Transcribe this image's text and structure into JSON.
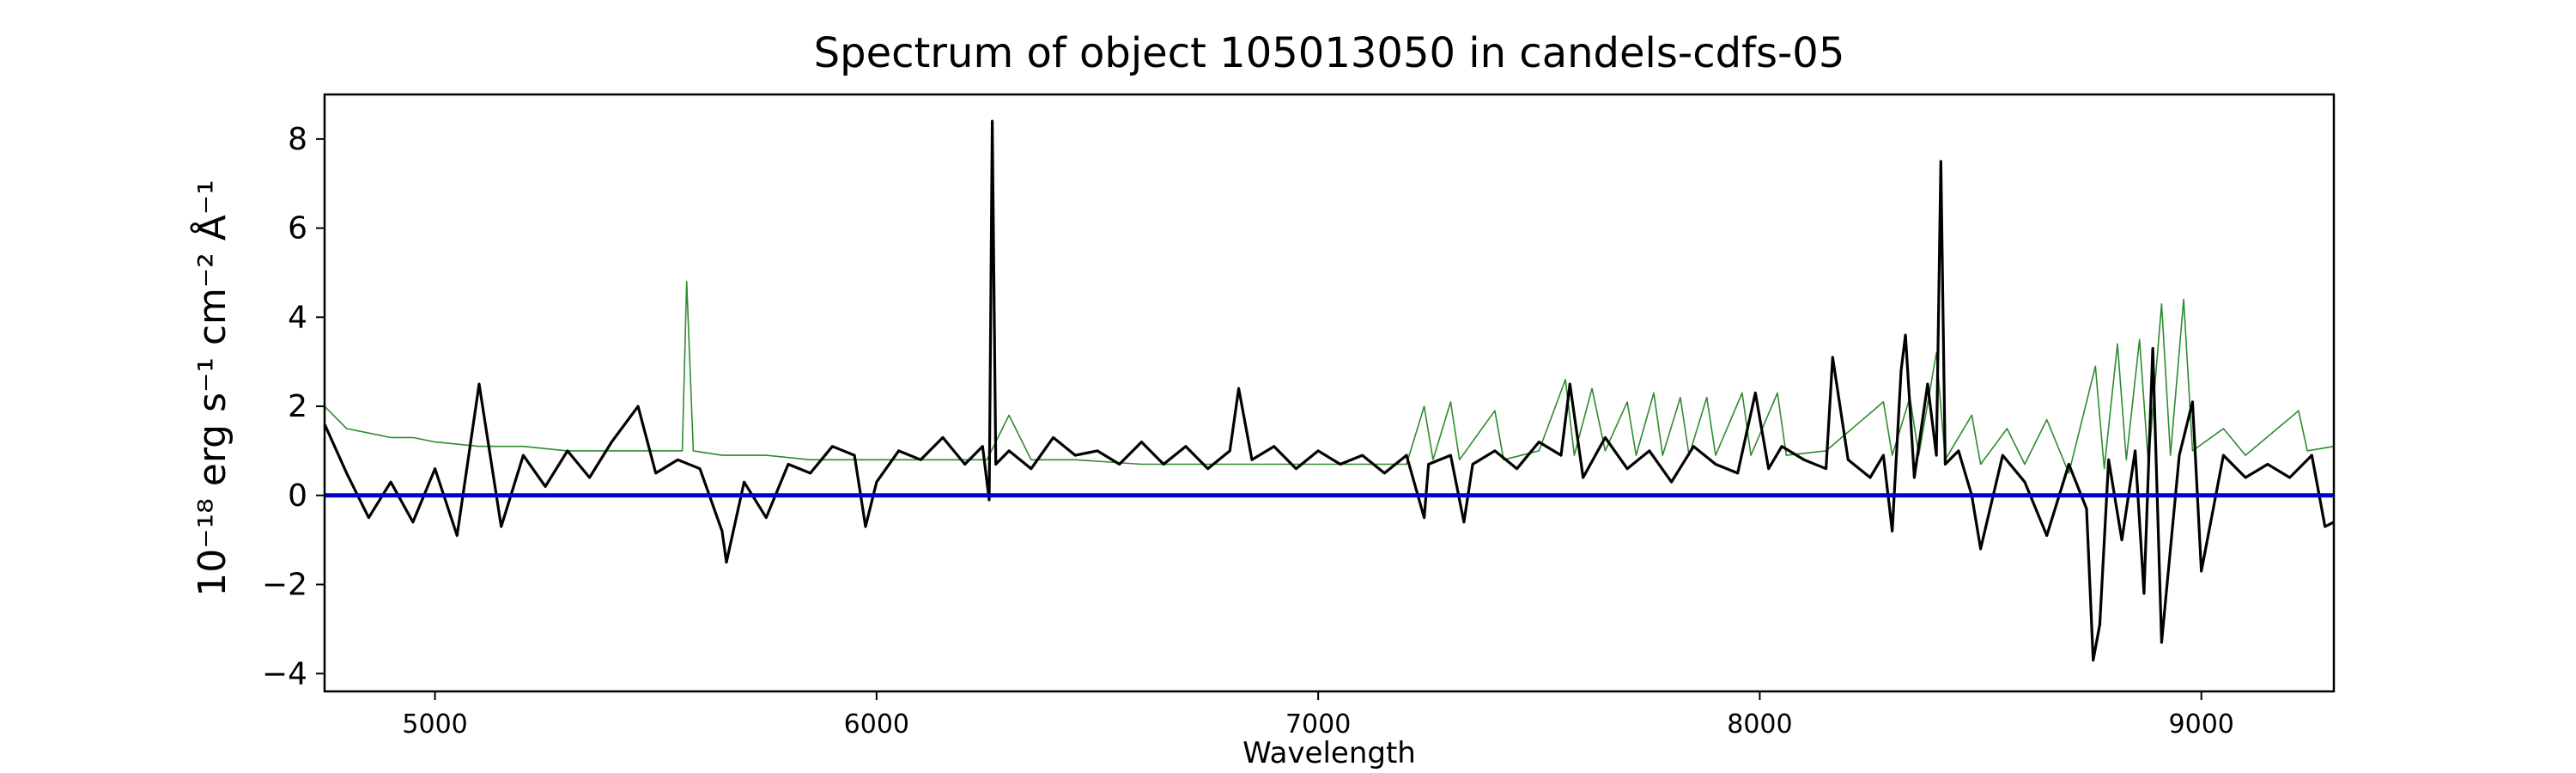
{
  "chart_data": {
    "type": "line",
    "title": "Spectrum of object 105013050 in candels-cdfs-05",
    "xlabel": "Wavelength",
    "ylabel": "10⁻¹⁸ erg s⁻¹ cm⁻² Å⁻¹",
    "xlim": [
      4750,
      9300
    ],
    "ylim": [
      -4.4,
      9.0
    ],
    "x_ticks": [
      5000,
      6000,
      7000,
      8000,
      9000
    ],
    "y_ticks": [
      -4,
      -2,
      0,
      2,
      4,
      6,
      8
    ],
    "grid": false,
    "legend": "none",
    "series": [
      {
        "color": "#000000",
        "points": [
          [
            4750,
            1.6
          ],
          [
            4800,
            0.5
          ],
          [
            4850,
            -0.5
          ],
          [
            4900,
            0.3
          ],
          [
            4950,
            -0.6
          ],
          [
            5000,
            0.6
          ],
          [
            5050,
            -0.9
          ],
          [
            5100,
            2.5
          ],
          [
            5150,
            -0.7
          ],
          [
            5200,
            0.9
          ],
          [
            5250,
            0.2
          ],
          [
            5300,
            1.0
          ],
          [
            5350,
            0.4
          ],
          [
            5400,
            1.2
          ],
          [
            5460,
            2.0
          ],
          [
            5500,
            0.5
          ],
          [
            5550,
            0.8
          ],
          [
            5600,
            0.6
          ],
          [
            5650,
            -0.8
          ],
          [
            5660,
            -1.5
          ],
          [
            5700,
            0.3
          ],
          [
            5750,
            -0.5
          ],
          [
            5800,
            0.7
          ],
          [
            5850,
            0.5
          ],
          [
            5900,
            1.1
          ],
          [
            5950,
            0.9
          ],
          [
            5975,
            -0.7
          ],
          [
            6000,
            0.3
          ],
          [
            6050,
            1.0
          ],
          [
            6100,
            0.8
          ],
          [
            6150,
            1.3
          ],
          [
            6200,
            0.7
          ],
          [
            6240,
            1.1
          ],
          [
            6255,
            -0.1
          ],
          [
            6262,
            8.4
          ],
          [
            6270,
            0.7
          ],
          [
            6300,
            1.0
          ],
          [
            6350,
            0.6
          ],
          [
            6400,
            1.3
          ],
          [
            6450,
            0.9
          ],
          [
            6500,
            1.0
          ],
          [
            6550,
            0.7
          ],
          [
            6600,
            1.2
          ],
          [
            6650,
            0.7
          ],
          [
            6700,
            1.1
          ],
          [
            6750,
            0.6
          ],
          [
            6800,
            1.0
          ],
          [
            6820,
            2.4
          ],
          [
            6850,
            0.8
          ],
          [
            6900,
            1.1
          ],
          [
            6950,
            0.6
          ],
          [
            7000,
            1.0
          ],
          [
            7050,
            0.7
          ],
          [
            7100,
            0.9
          ],
          [
            7150,
            0.5
          ],
          [
            7200,
            0.9
          ],
          [
            7240,
            -0.5
          ],
          [
            7250,
            0.7
          ],
          [
            7300,
            0.9
          ],
          [
            7330,
            -0.6
          ],
          [
            7350,
            0.7
          ],
          [
            7400,
            1.0
          ],
          [
            7450,
            0.6
          ],
          [
            7500,
            1.2
          ],
          [
            7550,
            0.9
          ],
          [
            7570,
            2.5
          ],
          [
            7600,
            0.4
          ],
          [
            7650,
            1.3
          ],
          [
            7700,
            0.6
          ],
          [
            7750,
            1.0
          ],
          [
            7800,
            0.3
          ],
          [
            7850,
            1.1
          ],
          [
            7900,
            0.7
          ],
          [
            7950,
            0.5
          ],
          [
            7990,
            2.3
          ],
          [
            8020,
            0.6
          ],
          [
            8050,
            1.1
          ],
          [
            8100,
            0.8
          ],
          [
            8150,
            0.6
          ],
          [
            8165,
            3.1
          ],
          [
            8200,
            0.8
          ],
          [
            8250,
            0.4
          ],
          [
            8280,
            0.9
          ],
          [
            8300,
            -0.8
          ],
          [
            8320,
            2.8
          ],
          [
            8330,
            3.6
          ],
          [
            8350,
            0.4
          ],
          [
            8380,
            2.5
          ],
          [
            8400,
            0.9
          ],
          [
            8410,
            7.5
          ],
          [
            8420,
            0.7
          ],
          [
            8450,
            1.0
          ],
          [
            8480,
            0.0
          ],
          [
            8500,
            -1.2
          ],
          [
            8550,
            0.9
          ],
          [
            8600,
            0.3
          ],
          [
            8650,
            -0.9
          ],
          [
            8700,
            0.7
          ],
          [
            8740,
            -0.3
          ],
          [
            8755,
            -3.7
          ],
          [
            8770,
            -2.9
          ],
          [
            8790,
            0.8
          ],
          [
            8820,
            -1.0
          ],
          [
            8850,
            1.0
          ],
          [
            8870,
            -2.2
          ],
          [
            8890,
            3.3
          ],
          [
            8910,
            -3.3
          ],
          [
            8950,
            0.9
          ],
          [
            8980,
            2.1
          ],
          [
            9000,
            -1.7
          ],
          [
            9050,
            0.9
          ],
          [
            9100,
            0.4
          ],
          [
            9150,
            0.7
          ],
          [
            9200,
            0.4
          ],
          [
            9250,
            0.9
          ],
          [
            9280,
            -0.7
          ],
          [
            9300,
            -0.6
          ]
        ]
      },
      {
        "color": "#2e8b2e",
        "points": [
          [
            4750,
            2.0
          ],
          [
            4800,
            1.5
          ],
          [
            4850,
            1.4
          ],
          [
            4900,
            1.3
          ],
          [
            4950,
            1.3
          ],
          [
            5000,
            1.2
          ],
          [
            5100,
            1.1
          ],
          [
            5200,
            1.1
          ],
          [
            5300,
            1.0
          ],
          [
            5400,
            1.0
          ],
          [
            5500,
            1.0
          ],
          [
            5560,
            1.0
          ],
          [
            5570,
            4.8
          ],
          [
            5585,
            1.0
          ],
          [
            5650,
            0.9
          ],
          [
            5750,
            0.9
          ],
          [
            5850,
            0.8
          ],
          [
            5950,
            0.8
          ],
          [
            6050,
            0.8
          ],
          [
            6150,
            0.8
          ],
          [
            6250,
            0.8
          ],
          [
            6300,
            1.8
          ],
          [
            6350,
            0.8
          ],
          [
            6450,
            0.8
          ],
          [
            6600,
            0.7
          ],
          [
            6800,
            0.7
          ],
          [
            7000,
            0.7
          ],
          [
            7200,
            0.7
          ],
          [
            7240,
            2.0
          ],
          [
            7260,
            0.8
          ],
          [
            7300,
            2.1
          ],
          [
            7320,
            0.8
          ],
          [
            7400,
            1.9
          ],
          [
            7420,
            0.8
          ],
          [
            7500,
            1.0
          ],
          [
            7560,
            2.6
          ],
          [
            7580,
            0.9
          ],
          [
            7620,
            2.4
          ],
          [
            7650,
            1.0
          ],
          [
            7700,
            2.1
          ],
          [
            7720,
            0.9
          ],
          [
            7760,
            2.3
          ],
          [
            7780,
            0.9
          ],
          [
            7820,
            2.2
          ],
          [
            7840,
            0.9
          ],
          [
            7880,
            2.2
          ],
          [
            7900,
            0.9
          ],
          [
            7960,
            2.3
          ],
          [
            7980,
            0.9
          ],
          [
            8040,
            2.3
          ],
          [
            8060,
            0.9
          ],
          [
            8150,
            1.0
          ],
          [
            8280,
            2.1
          ],
          [
            8300,
            0.9
          ],
          [
            8340,
            2.2
          ],
          [
            8360,
            0.9
          ],
          [
            8400,
            3.2
          ],
          [
            8420,
            0.8
          ],
          [
            8480,
            1.8
          ],
          [
            8500,
            0.7
          ],
          [
            8560,
            1.5
          ],
          [
            8600,
            0.7
          ],
          [
            8650,
            1.7
          ],
          [
            8700,
            0.5
          ],
          [
            8760,
            2.9
          ],
          [
            8780,
            0.6
          ],
          [
            8810,
            3.4
          ],
          [
            8830,
            0.8
          ],
          [
            8860,
            3.5
          ],
          [
            8880,
            0.7
          ],
          [
            8910,
            4.3
          ],
          [
            8930,
            0.9
          ],
          [
            8960,
            4.4
          ],
          [
            8980,
            1.0
          ],
          [
            9050,
            1.5
          ],
          [
            9100,
            0.9
          ],
          [
            9220,
            1.9
          ],
          [
            9240,
            1.0
          ],
          [
            9300,
            1.1
          ]
        ]
      },
      {
        "color": "#0000cc",
        "points": [
          [
            4750,
            0.0
          ],
          [
            9300,
            0.0
          ]
        ]
      }
    ]
  }
}
